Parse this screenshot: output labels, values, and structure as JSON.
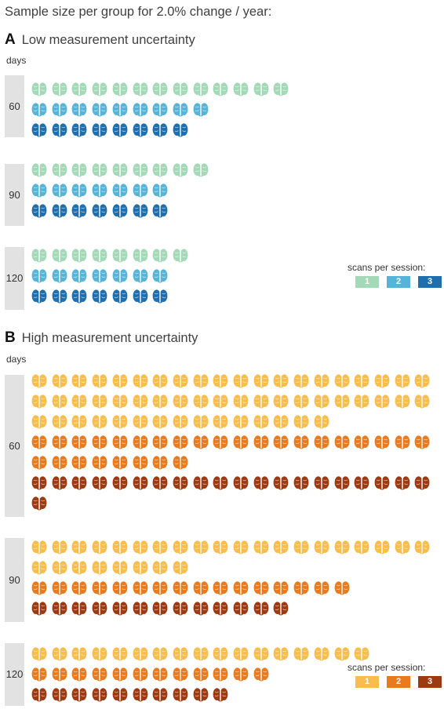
{
  "title": "Sample size per group for 2.0% change / year:",
  "icon": "brain-icon",
  "panels": [
    {
      "letter": "A",
      "heading": "Low measurement uncertainty",
      "days_label": "days",
      "colors": [
        "#a4d9b8",
        "#56b4d9",
        "#1f6fae"
      ],
      "groups": [
        {
          "days": "60",
          "counts": [
            13,
            9,
            8
          ]
        },
        {
          "days": "90",
          "counts": [
            9,
            7,
            7
          ]
        },
        {
          "days": "120",
          "counts": [
            8,
            7,
            7
          ]
        }
      ],
      "legend": {
        "title": "scans per session:",
        "items": [
          "1",
          "2",
          "3"
        ]
      }
    },
    {
      "letter": "B",
      "heading": "High measurement uncertainty",
      "days_label": "days",
      "colors": [
        "#f9bd4c",
        "#ea7a1e",
        "#9e3a12"
      ],
      "groups": [
        {
          "days": "60",
          "counts": [
            55,
            28,
            21
          ]
        },
        {
          "days": "90",
          "counts": [
            28,
            16,
            13
          ]
        },
        {
          "days": "120",
          "counts": [
            17,
            12,
            10
          ]
        }
      ],
      "legend": {
        "title": "scans per session:",
        "items": [
          "1",
          "2",
          "3"
        ]
      }
    }
  ]
}
